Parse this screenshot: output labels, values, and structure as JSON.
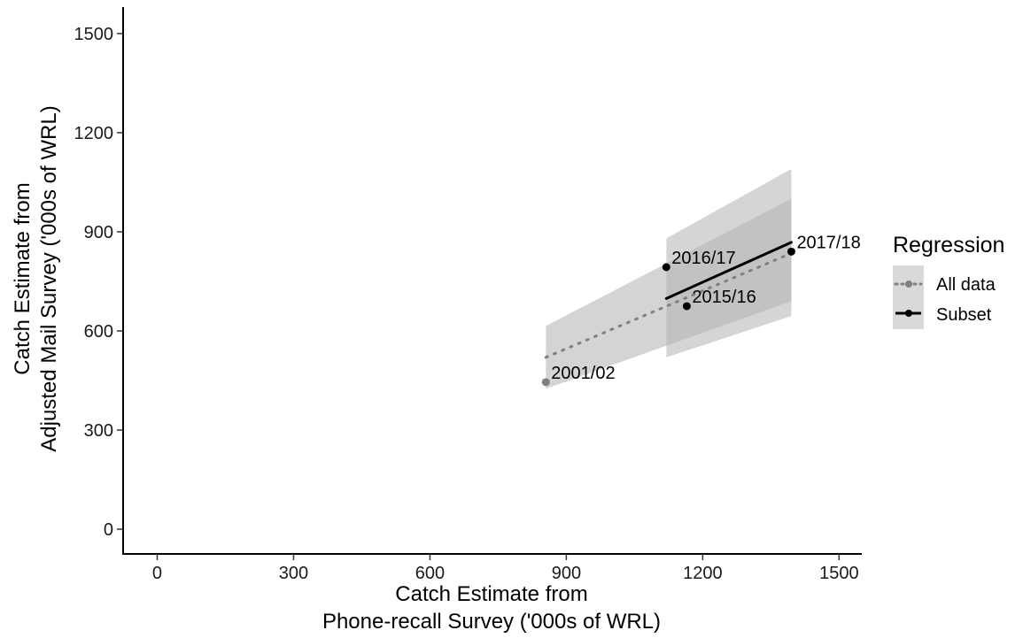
{
  "chart_data": {
    "type": "scatter",
    "xlabel_lines": [
      "Catch Estimate from",
      "Phone-recall Survey ('000s of WRL)"
    ],
    "ylabel_lines": [
      "Catch Estimate from",
      "Adjusted Mail Survey ('000s of WRL)"
    ],
    "xlim": [
      -75,
      1550
    ],
    "ylim": [
      -75,
      1580
    ],
    "x_ticks": [
      0,
      300,
      600,
      900,
      1200,
      1500
    ],
    "y_ticks": [
      0,
      300,
      600,
      900,
      1200,
      1500
    ],
    "grid": false,
    "legend_position": "right",
    "legend_title": "Regression",
    "points": [
      {
        "label": "2001/02",
        "x": 855,
        "y": 445,
        "series": "All data",
        "color": "#808080"
      },
      {
        "label": "2015/16",
        "x": 1165,
        "y": 675,
        "series": "Subset",
        "color": "#000000"
      },
      {
        "label": "2016/17",
        "x": 1120,
        "y": 793,
        "series": "Subset",
        "color": "#000000"
      },
      {
        "label": "2017/18",
        "x": 1395,
        "y": 840,
        "series": "Subset",
        "color": "#000000"
      }
    ],
    "series": [
      {
        "name": "All data",
        "line_style": "dotted",
        "color": "#808080",
        "fit": [
          [
            855,
            520
          ],
          [
            1395,
            835
          ]
        ],
        "ribbon": [
          [
            855,
            425,
            615
          ],
          [
            1395,
            690,
            1000
          ]
        ]
      },
      {
        "name": "Subset",
        "line_style": "solid",
        "color": "#000000",
        "fit": [
          [
            1120,
            698
          ],
          [
            1395,
            868
          ]
        ],
        "ribbon": [
          [
            1120,
            520,
            880
          ],
          [
            1395,
            645,
            1090
          ]
        ]
      }
    ]
  }
}
